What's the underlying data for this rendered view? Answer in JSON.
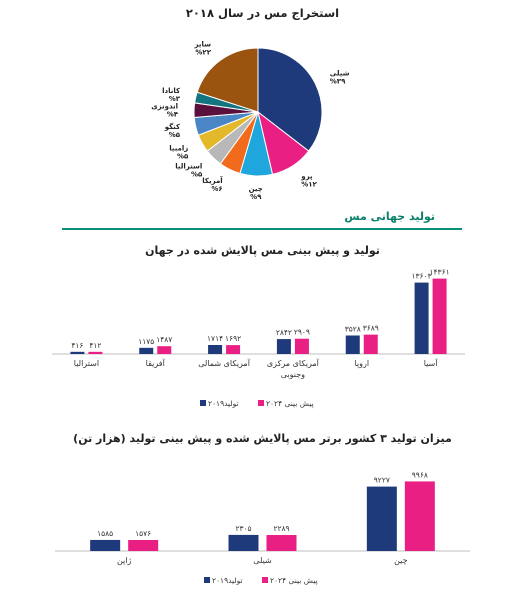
{
  "colors": {
    "production": "#1f3a7a",
    "forecast": "#ea1f83",
    "section": "#0a7f6a",
    "axis": "#bfbfbf"
  },
  "headings": {
    "pie_title": "استخراج مس در سال ۲۰۱۸",
    "section_title": "تولید جهانی مس",
    "bar1_title": "تولید و پیش بینی مس پالایش شده در جهان",
    "bar2_title": "میزان تولید ۳ کشور برتر مس پالایش شده و پیش بینی تولید (هزار تن)"
  },
  "chart_data": [
    {
      "type": "pie",
      "title": "استخراج مس در سال ۲۰۱۸",
      "slices": [
        {
          "name": "شیلی",
          "value": 39,
          "label": "%۳۹",
          "color": "#1f3a7a"
        },
        {
          "name": "پرو",
          "value": 12,
          "label": "%۱۲",
          "color": "#ea1f83"
        },
        {
          "name": "چین",
          "value": 9,
          "label": "%۹",
          "color": "#1fa7dd"
        },
        {
          "name": "آمریکا",
          "value": 6,
          "label": "%۶",
          "color": "#f26a1b"
        },
        {
          "name": "استرالیا",
          "value": 5,
          "label": "%۵",
          "color": "#b8b8b8"
        },
        {
          "name": "زامبیا",
          "value": 5,
          "label": "%۵",
          "color": "#e3b82a"
        },
        {
          "name": "کنگو",
          "value": 5,
          "label": "%۵",
          "color": "#4a86c5"
        },
        {
          "name": "اندونزی",
          "value": 4,
          "label": "%۴",
          "color": "#5a0f3c"
        },
        {
          "name": "کانادا",
          "value": 3,
          "label": "%۳",
          "color": "#137580"
        },
        {
          "name": "سایر",
          "value": 22,
          "label": "%۲۲",
          "color": "#9a5410"
        }
      ]
    },
    {
      "type": "bar",
      "title": "تولید و پیش بینی مس پالایش شده در جهان",
      "categories": [
        "آسیا",
        "اروپا",
        "آمریکای مرکزی و جنوبی",
        "آمریکای شمالی",
        "آفریقا",
        "استرالیا"
      ],
      "category_lines": [
        [
          "آسیا"
        ],
        [
          "اروپا"
        ],
        [
          "آمریکای مرکزی",
          "وجنوبی"
        ],
        [
          "آمریکای شمالی"
        ],
        [
          "آفریقا"
        ],
        [
          "استرالیا"
        ]
      ],
      "series": [
        {
          "name": "تولید۲۰۱۹",
          "values": [
            13603,
            3528,
            2842,
            1714,
            1175,
            416
          ],
          "labels": [
            "۱۳۶۰۳",
            "۳۵۲۸",
            "۲۸۴۲",
            "۱۷۱۴",
            "۱۱۷۵",
            "۴۱۶"
          ]
        },
        {
          "name": "پیش بینی ۲۰۲۴",
          "values": [
            14361,
            3689,
            2909,
            1692,
            1487,
            412
          ],
          "labels": [
            "۱۴۳۶۱",
            "۳۶۸۹",
            "۲۹۰۹",
            "۱۶۹۲",
            "۱۴۸۷",
            "۴۱۲"
          ]
        }
      ],
      "ylim": [
        0,
        16000
      ],
      "legend": "bottom"
    },
    {
      "type": "bar",
      "title": "میزان تولید ۳ کشور برتر مس پالایش شده و پیش بینی تولید (هزار تن)",
      "categories": [
        "چین",
        "شیلی",
        "ژاپن"
      ],
      "category_lines": [
        [
          "چین"
        ],
        [
          "شیلی"
        ],
        [
          "ژاپن"
        ]
      ],
      "series": [
        {
          "name": "تولید۲۰۱۹",
          "values": [
            9227,
            2305,
            1585
          ],
          "labels": [
            "۹۲۲۷",
            "۲۳۰۵",
            "۱۵۸۵"
          ]
        },
        {
          "name": "پیش بینی ۲۰۲۴",
          "values": [
            9968,
            2289,
            1576
          ],
          "labels": [
            "۹۹۶۸",
            "۲۲۸۹",
            "۱۵۷۶"
          ]
        }
      ],
      "ylim": [
        0,
        10600
      ],
      "legend": "bottom"
    }
  ]
}
